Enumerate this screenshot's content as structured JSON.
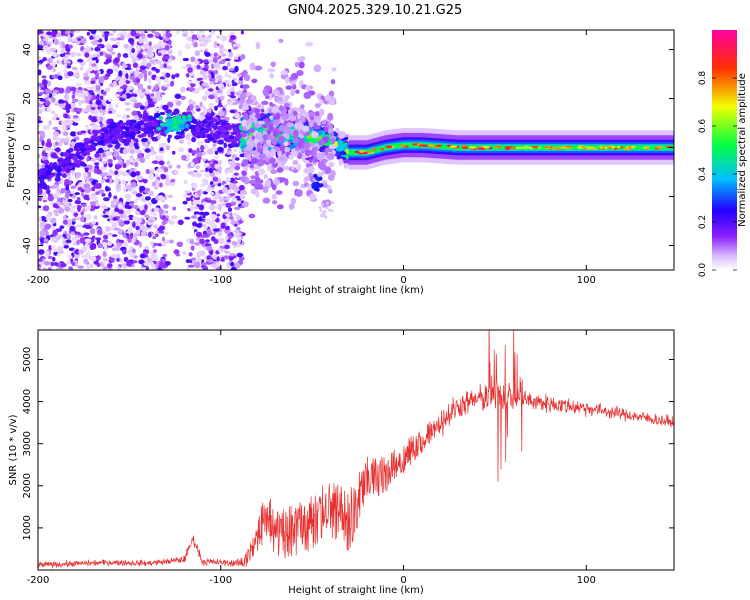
{
  "title": "GN04.2025.329.10.21.G25",
  "colors": {
    "snr_line": "#e83030",
    "frame": "#000000",
    "background": "#ffffff"
  },
  "chart_data": [
    {
      "type": "heatmap",
      "xlabel": "Height of straight line (km)",
      "ylabel": "Frequency (Hz)",
      "xlim": [
        -200,
        148
      ],
      "ylim": [
        -50,
        48
      ],
      "xticks": [
        -200,
        -100,
        0,
        100
      ],
      "xtick_labels": [
        "-200",
        "-100",
        "0",
        "100"
      ],
      "yticks": [
        -40,
        -20,
        0,
        20,
        40
      ],
      "ytick_labels": [
        "-40",
        "-20",
        "0",
        "20",
        "40"
      ],
      "colorbar": {
        "label": "Normalized spectral amplitude",
        "range": [
          0,
          1
        ],
        "ticks": [
          0.0,
          0.2,
          0.4,
          0.6,
          0.8
        ],
        "tick_labels": [
          "0.0",
          "0.2",
          "0.4",
          "0.6",
          "0.8"
        ],
        "colormap": [
          "#ffffff",
          "#8a20ff",
          "#2000ff",
          "#00c0ff",
          "#00ff40",
          "#f0ff00",
          "#ff3000",
          "#ff00a0"
        ]
      },
      "ridge": [
        [
          -200,
          -12
        ],
        [
          -180,
          -4
        ],
        [
          -160,
          6
        ],
        [
          -140,
          9
        ],
        [
          -120,
          10
        ],
        [
          -100,
          7
        ],
        [
          -90,
          4
        ],
        [
          -80,
          6
        ],
        [
          -70,
          6
        ],
        [
          -60,
          6
        ],
        [
          -50,
          3
        ],
        [
          -40,
          3
        ],
        [
          -30,
          -2
        ],
        [
          -20,
          -2
        ],
        [
          -10,
          0
        ],
        [
          0,
          1
        ],
        [
          10,
          1
        ],
        [
          30,
          0
        ],
        [
          60,
          0
        ],
        [
          100,
          0
        ],
        [
          148,
          0
        ]
      ],
      "features": [
        {
          "name": "noise region",
          "x": [
            -200,
            -88
          ],
          "amplitude": 0.15
        },
        {
          "name": "transition",
          "x": [
            -88,
            -30
          ],
          "amplitude": 0.45
        },
        {
          "name": "stable tone",
          "x": [
            -30,
            148
          ],
          "amplitude": 0.55
        },
        {
          "name": "isolated blob",
          "x": [
            -48,
            -46
          ],
          "freq": -15,
          "amplitude": 0.25
        }
      ]
    },
    {
      "type": "line",
      "xlabel": "Height of straight line (km)",
      "ylabel": "SNR (10 * v/v)",
      "xlim": [
        -200,
        148
      ],
      "ylim": [
        0,
        5700
      ],
      "xticks": [
        -200,
        -100,
        0,
        100
      ],
      "xtick_labels": [
        "-200",
        "-100",
        "0",
        "100"
      ],
      "yticks": [
        1000,
        2000,
        3000,
        4000,
        5000
      ],
      "ytick_labels": [
        "1000",
        "2000",
        "3000",
        "4000",
        "5000"
      ],
      "series": [
        {
          "name": "SNR",
          "x": [
            -200,
            -180,
            -160,
            -140,
            -130,
            -120,
            -115,
            -110,
            -100,
            -90,
            -85,
            -80,
            -75,
            -70,
            -60,
            -50,
            -40,
            -30,
            -20,
            -10,
            0,
            10,
            20,
            30,
            40,
            50,
            60,
            70,
            80,
            100,
            120,
            148
          ],
          "y": [
            120,
            150,
            180,
            160,
            200,
            250,
            750,
            200,
            180,
            160,
            300,
            800,
            1400,
            900,
            1000,
            1200,
            1500,
            1200,
            2200,
            2300,
            2700,
            3100,
            3500,
            3900,
            4050,
            4150,
            4150,
            4000,
            3950,
            3850,
            3700,
            3500
          ],
          "noise": [
            60,
            60,
            60,
            60,
            60,
            80,
            100,
            80,
            60,
            80,
            300,
            600,
            800,
            800,
            900,
            900,
            900,
            1000,
            700,
            600,
            500,
            400,
            300,
            250,
            250,
            350,
            300,
            200,
            180,
            150,
            120,
            120
          ]
        }
      ]
    }
  ]
}
